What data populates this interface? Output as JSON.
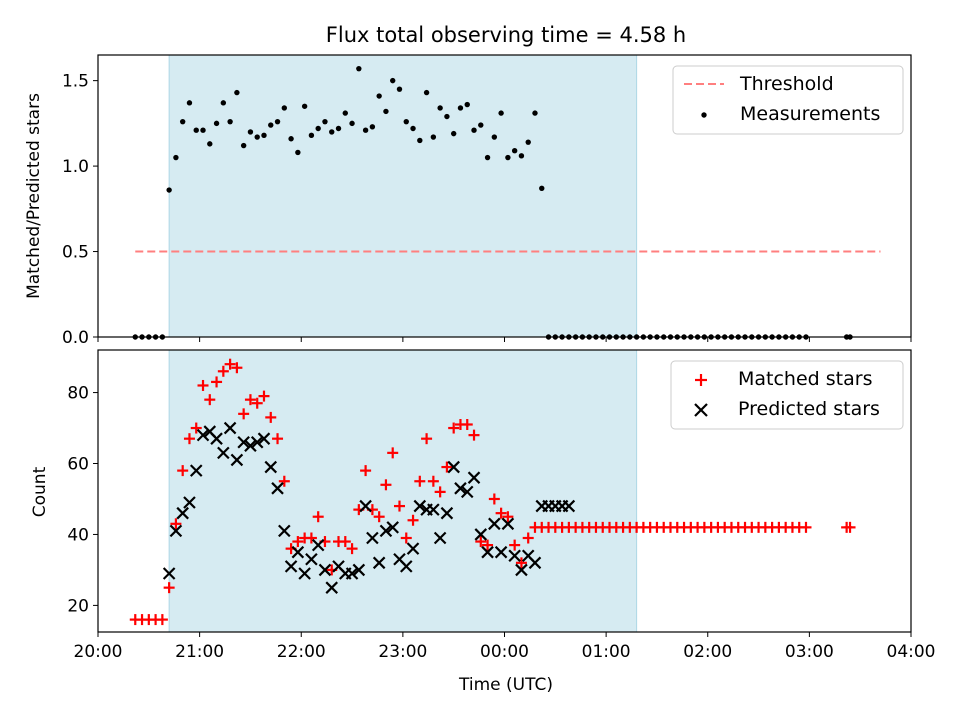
{
  "chart_data": [
    {
      "type": "scatter",
      "title": "Flux total observing time = 4.58 h",
      "xlabel": "",
      "ylabel": "Matched/Predicted stars",
      "xlim": [
        0,
        480
      ],
      "ylim": [
        0,
        1.65
      ],
      "xtick_values": [
        0,
        60,
        120,
        180,
        240,
        300,
        360,
        420,
        480
      ],
      "yticks": [
        "0.0",
        "0.5",
        "1.0",
        "1.5"
      ],
      "grid": false,
      "legend_placement": "top-right",
      "shaded_interval": [
        42,
        318
      ],
      "shaded_color": "#add8e6",
      "series": [
        {
          "name": "Threshold",
          "kind": "dashed-line",
          "color": "#ff7f7f",
          "x": [
            22,
            462
          ],
          "y": [
            0.5,
            0.5
          ]
        },
        {
          "name": "Measurements",
          "kind": "dots",
          "color": "#000000",
          "x": [
            22,
            26,
            30,
            34,
            38,
            42,
            46,
            50,
            54,
            58,
            62,
            66,
            70,
            74,
            78,
            82,
            86,
            90,
            94,
            98,
            102,
            106,
            110,
            114,
            118,
            122,
            126,
            130,
            134,
            138,
            142,
            146,
            150,
            154,
            158,
            162,
            166,
            170,
            174,
            178,
            182,
            186,
            190,
            194,
            198,
            202,
            206,
            210,
            214,
            218,
            222,
            226,
            230,
            234,
            238,
            242,
            246,
            250,
            254,
            258,
            262,
            266,
            270,
            274,
            278,
            282,
            286,
            290,
            294,
            298,
            302,
            306,
            310,
            314,
            318,
            322,
            326,
            330,
            334,
            338,
            342,
            346,
            350,
            354,
            358,
            362,
            366,
            370,
            374,
            378,
            382,
            386,
            390,
            394,
            398,
            402,
            406,
            410,
            414,
            418,
            442,
            444
          ],
          "y": [
            0,
            0,
            0,
            0,
            0,
            0.86,
            1.05,
            1.26,
            1.37,
            1.21,
            1.21,
            1.13,
            1.25,
            1.37,
            1.26,
            1.43,
            1.12,
            1.2,
            1.17,
            1.18,
            1.24,
            1.26,
            1.34,
            1.16,
            1.08,
            1.35,
            1.18,
            1.22,
            1.26,
            1.2,
            1.22,
            1.31,
            1.25,
            1.57,
            1.21,
            1.23,
            1.41,
            1.32,
            1.5,
            1.45,
            1.26,
            1.22,
            1.15,
            1.43,
            1.17,
            1.34,
            1.29,
            1.19,
            1.34,
            1.36,
            1.21,
            1.24,
            1.05,
            1.17,
            1.31,
            1.05,
            1.09,
            1.06,
            1.14,
            1.31,
            0.87,
            0,
            0,
            0,
            0,
            0,
            0,
            0,
            0,
            0,
            0,
            0,
            0,
            0,
            0,
            0,
            0,
            0,
            0,
            0,
            0,
            0,
            0,
            0,
            0,
            0,
            0,
            0,
            0,
            0,
            0,
            0,
            0,
            0,
            0,
            0,
            0,
            0,
            0,
            0,
            0,
            0
          ]
        }
      ]
    },
    {
      "type": "scatter",
      "title": "",
      "xlabel": "Time (UTC)",
      "ylabel": "Count",
      "xlim": [
        0,
        480
      ],
      "ylim": [
        12.5,
        92
      ],
      "xticks": [
        "20:00",
        "21:00",
        "22:00",
        "23:00",
        "00:00",
        "01:00",
        "02:00",
        "03:00",
        "04:00"
      ],
      "xtick_values": [
        0,
        60,
        120,
        180,
        240,
        300,
        360,
        420,
        480
      ],
      "yticks": [
        "20",
        "40",
        "60",
        "80"
      ],
      "ytick_values": [
        20,
        40,
        60,
        80
      ],
      "grid": false,
      "legend_placement": "top-right",
      "shaded_interval": [
        42,
        318
      ],
      "shaded_color": "#add8e6",
      "series": [
        {
          "name": "Matched stars",
          "marker": "plus",
          "color": "#ff0000",
          "x": [
            22,
            26,
            30,
            34,
            38,
            42,
            46,
            50,
            54,
            58,
            62,
            66,
            70,
            74,
            78,
            82,
            86,
            90,
            94,
            98,
            102,
            106,
            110,
            114,
            118,
            122,
            126,
            130,
            134,
            138,
            142,
            146,
            150,
            154,
            158,
            162,
            166,
            170,
            174,
            178,
            182,
            186,
            190,
            194,
            198,
            202,
            206,
            210,
            214,
            218,
            222,
            226,
            230,
            234,
            238,
            242,
            246,
            250,
            254,
            258,
            262,
            266,
            270,
            274,
            278,
            282,
            286,
            290,
            294,
            298,
            302,
            306,
            310,
            314,
            318,
            322,
            326,
            330,
            334,
            338,
            342,
            346,
            350,
            354,
            358,
            362,
            366,
            370,
            374,
            378,
            382,
            386,
            390,
            394,
            398,
            402,
            406,
            410,
            414,
            418,
            442,
            444
          ],
          "y": [
            16,
            16,
            16,
            16,
            16,
            25,
            43,
            58,
            67,
            70,
            82,
            78,
            83,
            86,
            88,
            87,
            74,
            78,
            77,
            79,
            73,
            67,
            55,
            36,
            38,
            39,
            39,
            45,
            38,
            30,
            38,
            38,
            36,
            47,
            58,
            47,
            45,
            54,
            63,
            48,
            39,
            44,
            55,
            67,
            55,
            52,
            59,
            70,
            71,
            71,
            68,
            38,
            37,
            50,
            46,
            45,
            37,
            32,
            39,
            42,
            42,
            42,
            42,
            42,
            42,
            42,
            42,
            42,
            42,
            42,
            42,
            42,
            42,
            42,
            42,
            42,
            42,
            42,
            42,
            42,
            42,
            42,
            42,
            42,
            42,
            42,
            42,
            42,
            42,
            42,
            42,
            42,
            42,
            42,
            42,
            42,
            42,
            42,
            42,
            42,
            42,
            42
          ]
        },
        {
          "name": "Predicted stars",
          "marker": "x",
          "color": "#000000",
          "x": [
            42,
            46,
            50,
            54,
            58,
            62,
            66,
            70,
            74,
            78,
            82,
            86,
            90,
            94,
            98,
            102,
            106,
            110,
            114,
            118,
            122,
            126,
            130,
            134,
            138,
            142,
            146,
            150,
            154,
            158,
            162,
            166,
            170,
            174,
            178,
            182,
            186,
            190,
            194,
            198,
            202,
            206,
            210,
            214,
            218,
            222,
            226,
            230,
            234,
            238,
            242,
            246,
            250,
            254,
            258,
            262,
            266,
            270,
            274,
            278
          ],
          "y": [
            29,
            41,
            46,
            49,
            58,
            68,
            69,
            67,
            63,
            70,
            61,
            66,
            65,
            66,
            67,
            59,
            53,
            41,
            31,
            35,
            29,
            33,
            37,
            30,
            25,
            31,
            29,
            29,
            30,
            48,
            39,
            32,
            41,
            42,
            33,
            31,
            36,
            48,
            47,
            47,
            39,
            46,
            59,
            53,
            52,
            56,
            40,
            35,
            43,
            35,
            43,
            34,
            30,
            34,
            32,
            48,
            48,
            48,
            48,
            48
          ]
        }
      ]
    }
  ]
}
